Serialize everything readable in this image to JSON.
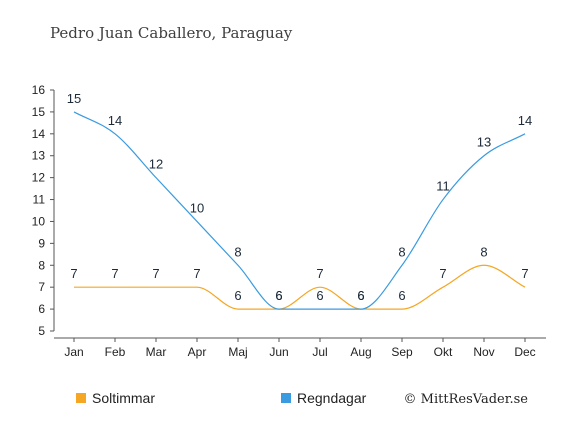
{
  "chart_data": {
    "type": "line",
    "title": "Pedro Juan Caballero, Paraguay",
    "categories": [
      "Jan",
      "Feb",
      "Mar",
      "Apr",
      "Maj",
      "Jun",
      "Jul",
      "Aug",
      "Sep",
      "Okt",
      "Nov",
      "Dec"
    ],
    "ylim": [
      5,
      16
    ],
    "yticks": [
      5,
      6,
      7,
      8,
      9,
      10,
      11,
      12,
      13,
      14,
      15,
      16
    ],
    "grid": false,
    "legend_position": "bottom-left",
    "series": [
      {
        "name": "Soltimmar",
        "color": "#f5a623",
        "values": [
          7,
          7,
          7,
          7,
          6,
          6,
          7,
          6,
          6,
          7,
          8,
          7
        ]
      },
      {
        "name": "Regndagar",
        "color": "#3a9be0",
        "values": [
          15,
          14,
          12,
          10,
          8,
          6,
          6,
          6,
          8,
          11,
          13,
          14
        ]
      }
    ],
    "credit": "© MittResVader.se"
  }
}
